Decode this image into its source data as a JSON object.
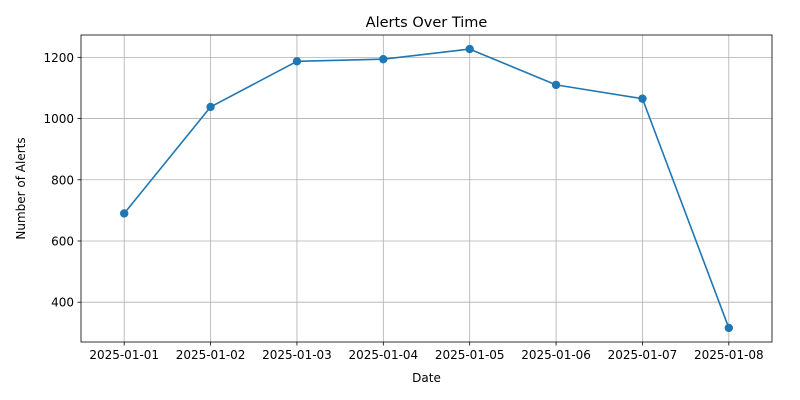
{
  "chart_data": {
    "type": "line",
    "title": "Alerts Over Time",
    "xlabel": "Date",
    "ylabel": "Number of Alerts",
    "x": [
      "2025-01-01",
      "2025-01-02",
      "2025-01-03",
      "2025-01-04",
      "2025-01-05",
      "2025-01-06",
      "2025-01-07",
      "2025-01-08"
    ],
    "series": [
      {
        "values": [
          690,
          1038,
          1187,
          1194,
          1227,
          1110,
          1065,
          316
        ]
      }
    ],
    "yticks": [
      400,
      600,
      800,
      1000,
      1200
    ],
    "ylim": [
      270,
      1273
    ],
    "grid": true,
    "line_color": "#1f77b4",
    "marker": "circle"
  }
}
